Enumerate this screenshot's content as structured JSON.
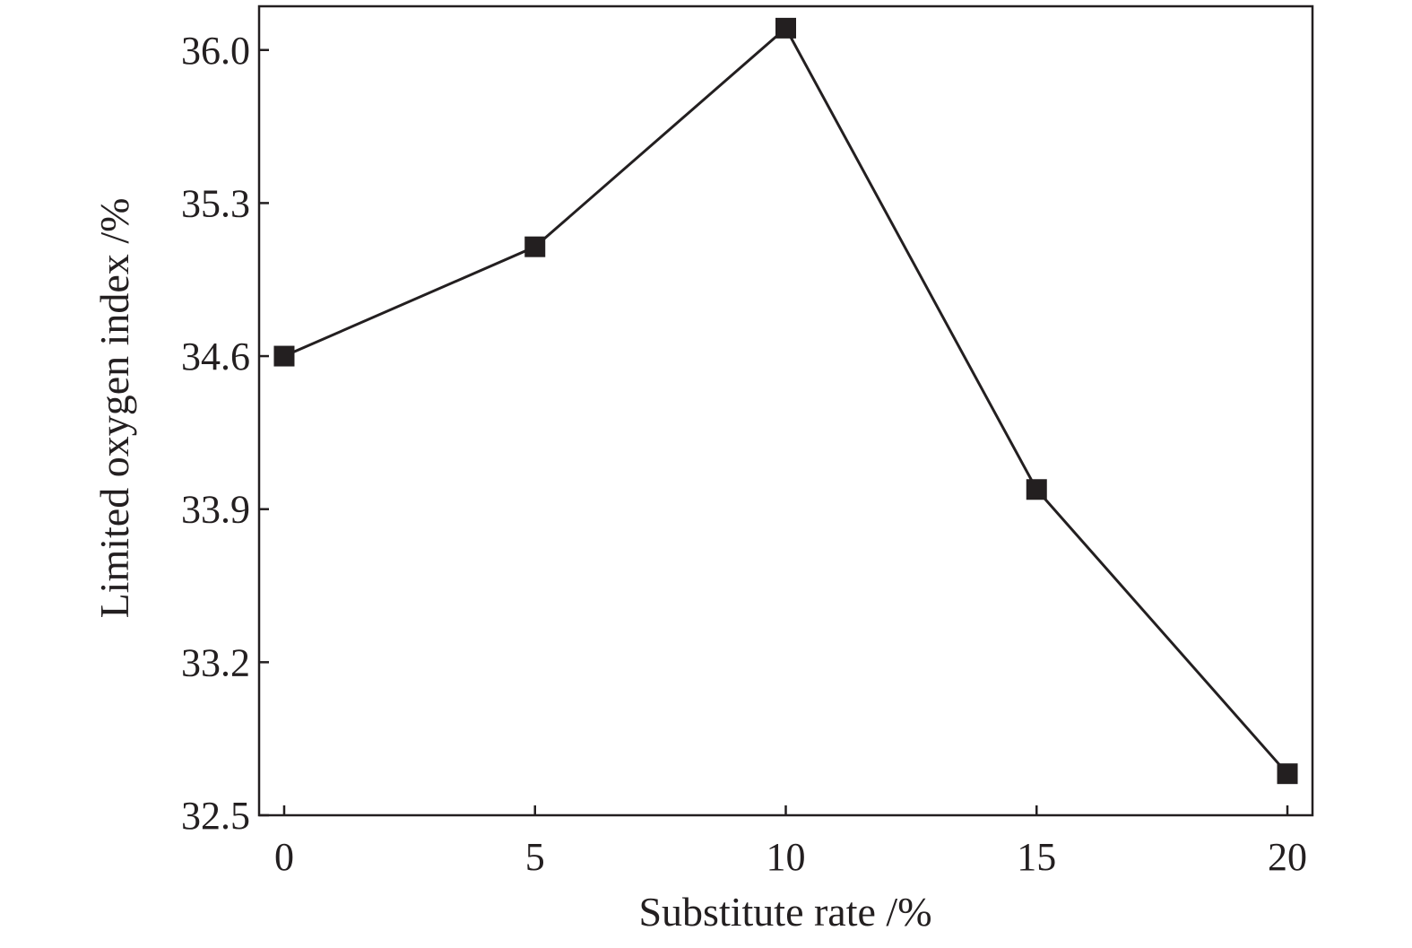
{
  "chart_data": {
    "type": "line",
    "title": "",
    "xlabel": "Substitute rate /%",
    "ylabel": "Limited oxygen index /%",
    "x": [
      0,
      5,
      10,
      15,
      20
    ],
    "series": [
      {
        "values": [
          34.6,
          35.1,
          36.1,
          33.99,
          32.69
        ],
        "marker": "square",
        "color": "#231f20"
      }
    ],
    "xlim": [
      -0.5,
      20.5
    ],
    "ylim": [
      32.5,
      36.2
    ],
    "xticks": [
      "0",
      "5",
      "10",
      "15",
      "20"
    ],
    "yticks": [
      "32.5",
      "33.2",
      "33.9",
      "34.6",
      "35.3",
      "36.0"
    ],
    "grid": false,
    "legend": "none",
    "colors": {
      "ink": "#231f20",
      "background": "#ffffff"
    }
  }
}
